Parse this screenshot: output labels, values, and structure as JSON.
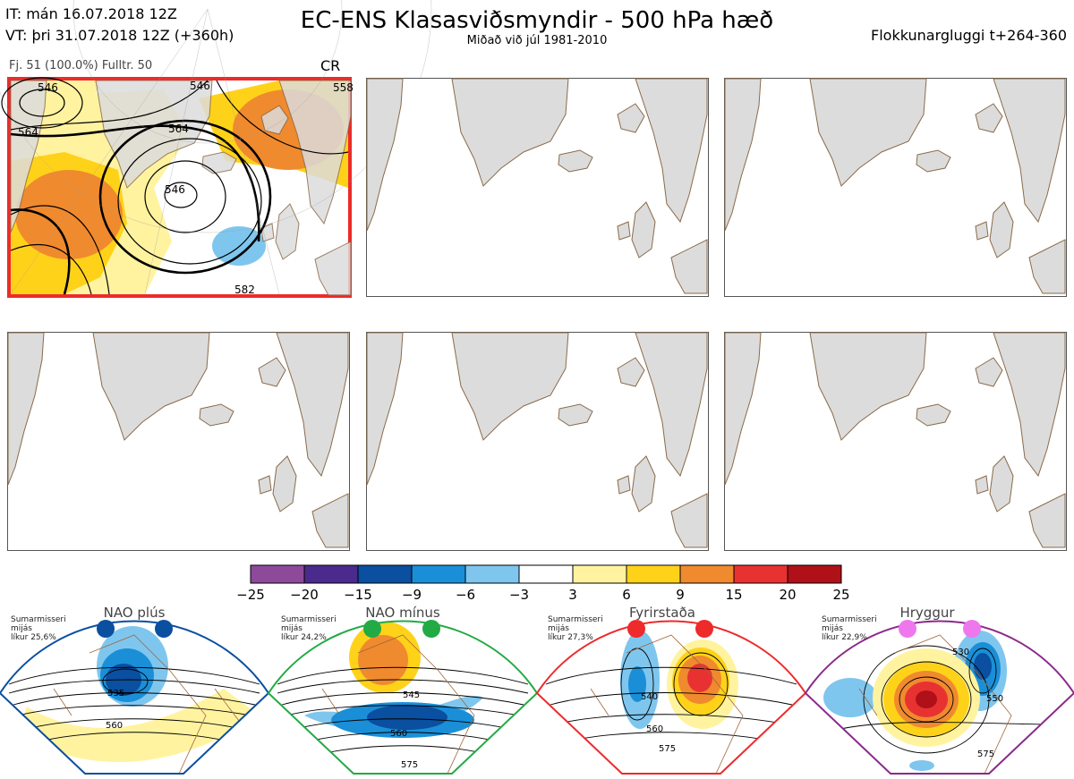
{
  "header": {
    "it_line": "IT: mán 16.07.2018 12Z",
    "vt_line": "VT: þri 31.07.2018 12Z  (+360h)",
    "title": "EC-ENS Klasasviðsmyndir - 500 hPa hæð",
    "subtitle": "Miðað við júl 1981-2010",
    "window": "Flokkunargluggi t+264-360"
  },
  "cluster_panel": {
    "stats": "Fj. 51 (100.0%)   Fulltr. 50",
    "code": "CR",
    "contour_labels": [
      "546",
      "564",
      "564",
      "546",
      "558",
      "582",
      "546"
    ]
  },
  "colorbar": {
    "labels": [
      "−25",
      "−20",
      "−15",
      "−9",
      "−6",
      "−3",
      "3",
      "6",
      "9",
      "15",
      "20",
      "25"
    ],
    "colors": [
      "#8e4a9a",
      "#4a2a8c",
      "#0a4fa0",
      "#1a8fd8",
      "#7fc6ee",
      "#ffffff",
      "#fff3a0",
      "#ffd21a",
      "#f08a2e",
      "#e83232",
      "#b01018"
    ]
  },
  "regimes": [
    {
      "name": "NAO plús",
      "info": [
        "Sumarmisseri",
        "mijás",
        "líkur 25,6%"
      ],
      "color": "#0a4fa0",
      "labels": [
        "535",
        "560"
      ]
    },
    {
      "name": "NAO mínus",
      "info": [
        "Sumarmisseri",
        "mijás",
        "líkur 24,2%"
      ],
      "color": "#22aa44",
      "labels": [
        "545",
        "560",
        "575"
      ]
    },
    {
      "name": "Fyrirstaða",
      "info": [
        "Sumarmisseri",
        "mijás",
        "líkur 27,3%"
      ],
      "color": "#ee2a2a",
      "labels": [
        "540",
        "560",
        "575"
      ]
    },
    {
      "name": "Hryggur",
      "info": [
        "Sumarmisseri",
        "mijás",
        "líkur 22,9%"
      ],
      "color": "#ee77ee",
      "labels": [
        "530",
        "550",
        "575"
      ]
    }
  ]
}
